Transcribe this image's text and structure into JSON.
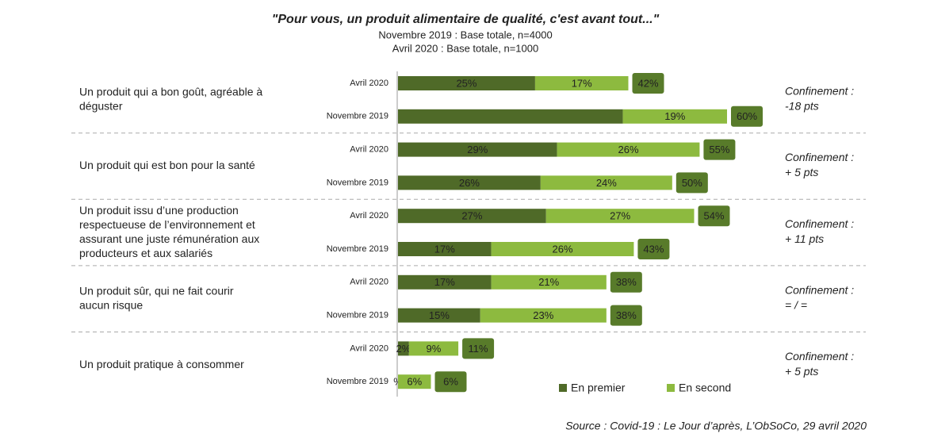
{
  "chart_data": {
    "type": "bar",
    "orientation": "horizontal",
    "stacked": true,
    "title": "\"Pour vous, un produit alimentaire de qualité, c'est avant tout...\"",
    "subtitle": [
      "Novembre 2019 : Base totale, n=4000",
      "Avril 2020 : Base totale, n=1000"
    ],
    "source": "Source : Covid-19 : Le Jour d’après, L’ObSoCo, 29 avril 2020",
    "categories": [
      "Avril 2020",
      "Novembre 2019",
      "Avril 2020",
      "Novembre 2019",
      "Avril 2020",
      "Novembre 2019",
      "Avril 2020",
      "Novembre 2019",
      "Avril 2020",
      "Novembre 2019"
    ],
    "groups": [
      {
        "label": [
          "Un produit qui a bon goût, agréable à",
          "déguster"
        ],
        "annotation": [
          "Confinement :",
          " -18 pts"
        ],
        "annotation_color": "#2f9ac0"
      },
      {
        "label": [
          "Un produit qui est bon pour la santé"
        ],
        "annotation": [
          "Confinement :",
          "+ 5 pts"
        ],
        "annotation_color": "#8dba3f"
      },
      {
        "label": [
          "Un produit issu d’une production",
          "respectueuse de l’environnement et",
          "assurant une juste rémunération aux",
          "producteurs et aux salariés"
        ],
        "annotation": [
          "Confinement :",
          "+ 11 pts"
        ],
        "annotation_color": "#4f6a28"
      },
      {
        "label": [
          "Un produit sûr, qui ne fait courir",
          "aucun risque"
        ],
        "annotation": [
          "Confinement :",
          "= / ="
        ],
        "annotation_color": "#111111"
      },
      {
        "label": [
          "Un produit pratique à consommer"
        ],
        "annotation": [
          "Confinement :",
          "+ 5 pts"
        ],
        "annotation_color": "#8dba3f"
      }
    ],
    "series": [
      {
        "name": "En premier",
        "color": "#4f6a28",
        "values": [
          25,
          41,
          29,
          26,
          27,
          17,
          17,
          15,
          2,
          0
        ],
        "value_labels": [
          "25%",
          null,
          "29%",
          "26%",
          "27%",
          "17%",
          "17%",
          "15%",
          "2%",
          "%"
        ]
      },
      {
        "name": "En second",
        "color": "#8dba3f",
        "values": [
          17,
          19,
          26,
          24,
          27,
          26,
          21,
          23,
          9,
          6
        ],
        "value_labels": [
          "17%",
          "19%",
          "26%",
          "24%",
          "27%",
          "26%",
          "21%",
          "23%",
          "9%",
          "6%"
        ]
      }
    ],
    "totals": {
      "color": "#587b2a",
      "values": [
        42,
        60,
        55,
        50,
        54,
        43,
        38,
        38,
        11,
        6
      ],
      "value_labels": [
        "42%",
        "60%",
        "55%",
        "50%",
        "54%",
        "43%",
        "38%",
        "38%",
        "11%",
        "6%"
      ]
    },
    "xlim": [
      0,
      60
    ]
  }
}
